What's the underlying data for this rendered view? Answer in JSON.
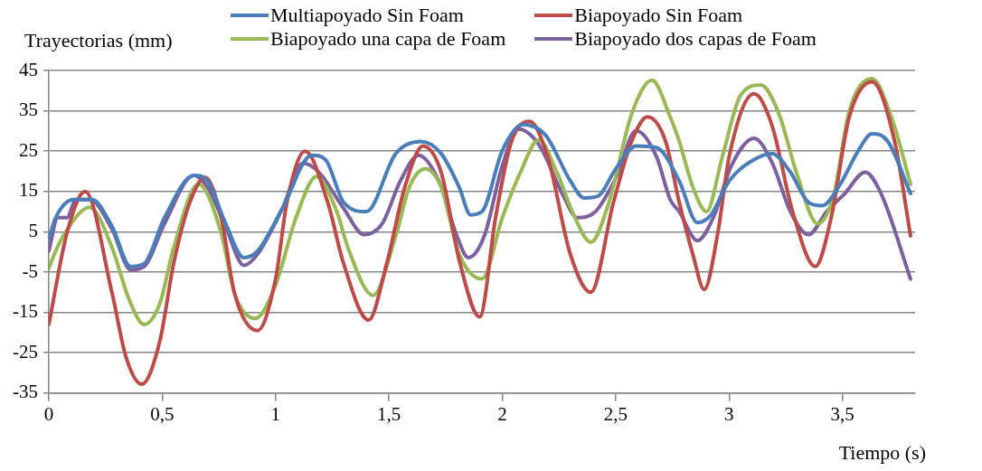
{
  "chart_data": {
    "type": "line",
    "ylabel": "Trayectorias (mm)",
    "xlabel": "Tiempo (s)",
    "xlim": [
      0,
      3.82
    ],
    "xticks": [
      0,
      {
        "value": 0.5,
        "label": "0,5"
      },
      1,
      {
        "value": 1.5,
        "label": "1,5"
      },
      2,
      {
        "value": 2.5,
        "label": "2,5"
      },
      3,
      {
        "value": 3.5,
        "label": "3,5"
      }
    ],
    "ylim": [
      -35,
      45
    ],
    "yticks": [
      -35,
      -25,
      -15,
      -5,
      5,
      15,
      25,
      35,
      45
    ],
    "grid": "y",
    "legend": "top",
    "marker": "none",
    "line_style": "solid",
    "series": [
      {
        "name": "Multiapoyado Sin Foam",
        "color": "#4a7ebb",
        "x": [
          0,
          0.03,
          0.11,
          0.19,
          0.28,
          0.36,
          0.42,
          0.51,
          0.64,
          0.7,
          0.78,
          0.86,
          0.92,
          1.03,
          1.16,
          1.22,
          1.3,
          1.4,
          1.53,
          1.64,
          1.73,
          1.81,
          1.86,
          1.91,
          2.0,
          2.09,
          2.19,
          2.3,
          2.36,
          2.42,
          2.5,
          2.59,
          2.68,
          2.78,
          2.86,
          2.92,
          3.0,
          3.11,
          3.19,
          3.27,
          3.35,
          3.41,
          3.49,
          3.57,
          3.63,
          3.7,
          3.8
        ],
        "values": [
          3.2,
          8.5,
          13,
          13,
          6.2,
          -3.6,
          -2.9,
          8.5,
          19,
          17.6,
          7,
          -1.4,
          0.2,
          10.8,
          24,
          22.9,
          12.3,
          10,
          24.4,
          27.4,
          24.4,
          16,
          9.2,
          10,
          25.2,
          31.6,
          29,
          17.6,
          13.4,
          13.8,
          20.6,
          26.3,
          25.9,
          17.6,
          7.3,
          9.2,
          17.6,
          22.9,
          24.4,
          19.8,
          12.3,
          11.5,
          16.8,
          25.2,
          29.3,
          27.4,
          14.5
        ]
      },
      {
        "name": "Biapoyado Sin Foam",
        "color": "#be4b48",
        "x": [
          0,
          0.08,
          0.16,
          0.28,
          0.34,
          0.41,
          0.49,
          0.55,
          0.62,
          0.69,
          0.76,
          0.82,
          0.92,
          1.0,
          1.05,
          1.13,
          1.23,
          1.3,
          1.41,
          1.49,
          1.57,
          1.65,
          1.73,
          1.81,
          1.9,
          1.97,
          2.04,
          2.12,
          2.2,
          2.3,
          2.39,
          2.49,
          2.57,
          2.64,
          2.72,
          2.78,
          2.84,
          2.89,
          2.95,
          3.0,
          3.11,
          3.19,
          3.28,
          3.38,
          3.45,
          3.53,
          3.63,
          3.73,
          3.8
        ],
        "values": [
          -18,
          4.7,
          15,
          -10.5,
          -26,
          -32.8,
          -22,
          -3,
          12,
          18.5,
          8.5,
          -10.5,
          -19.5,
          -6.7,
          12.3,
          25,
          12.3,
          -2.9,
          -16.9,
          -2.9,
          16.1,
          26.3,
          19.8,
          -2.1,
          -16.1,
          8.5,
          27.4,
          32.4,
          23.6,
          -0.6,
          -10,
          12.3,
          27.4,
          33.5,
          27.4,
          12.3,
          -0.6,
          -9.3,
          4.7,
          23.6,
          39.2,
          31.2,
          10,
          -3.6,
          8.5,
          33.5,
          42.2,
          27.4,
          4
        ]
      },
      {
        "name": "Biapoyado una capa de Foam",
        "color": "#98b954",
        "x": [
          0,
          0.03,
          0.08,
          0.18,
          0.28,
          0.35,
          0.42,
          0.49,
          0.55,
          0.66,
          0.76,
          0.82,
          0.91,
          1.0,
          1.09,
          1.18,
          1.27,
          1.32,
          1.43,
          1.53,
          1.59,
          1.66,
          1.73,
          1.81,
          1.91,
          2.0,
          2.08,
          2.16,
          2.24,
          2.32,
          2.39,
          2.47,
          2.57,
          2.66,
          2.74,
          2.78,
          2.84,
          2.9,
          2.97,
          3.05,
          3.14,
          3.22,
          3.3,
          3.39,
          3.46,
          3.53,
          3.63,
          3.72,
          3.8
        ],
        "values": [
          -4,
          0.2,
          5.5,
          11.1,
          0.9,
          -11.2,
          -18,
          -12.7,
          0.9,
          16.8,
          4.7,
          -10.5,
          -16.5,
          -8.2,
          8.5,
          18.7,
          10,
          0.9,
          -10.8,
          4,
          16.1,
          20.6,
          16.1,
          -0.6,
          -6.7,
          8.5,
          19.8,
          27.8,
          19.8,
          8.5,
          2.4,
          12.3,
          34.2,
          42.6,
          33.5,
          27.4,
          16.1,
          10,
          23.6,
          38.8,
          41.4,
          34.2,
          19.1,
          7,
          13.8,
          35,
          43,
          32.7,
          16.8
        ]
      },
      {
        "name": "Biapoyado dos capas de Foam",
        "color": "#7d60a0",
        "x": [
          0,
          0.04,
          0.08,
          0.12,
          0.18,
          0.28,
          0.36,
          0.42,
          0.51,
          0.64,
          0.7,
          0.78,
          0.86,
          0.92,
          1.03,
          1.12,
          1.19,
          1.3,
          1.39,
          1.47,
          1.55,
          1.63,
          1.72,
          1.8,
          1.85,
          1.92,
          2.0,
          2.07,
          2.16,
          2.27,
          2.33,
          2.41,
          2.5,
          2.59,
          2.68,
          2.74,
          2.78,
          2.86,
          2.93,
          3.01,
          3.11,
          3.19,
          3.27,
          3.35,
          3.43,
          3.51,
          3.6,
          3.67,
          3.8
        ],
        "values": [
          0.2,
          8.5,
          8.5,
          13,
          13,
          5.5,
          -4.4,
          -3.6,
          7,
          19,
          16,
          6.2,
          -3.3,
          -0.6,
          10.8,
          22,
          19.8,
          10.8,
          4.3,
          7,
          17.6,
          24,
          17.6,
          3.9,
          -1.4,
          3.9,
          21.4,
          30.5,
          26.7,
          13.8,
          8.5,
          10,
          18.3,
          30.1,
          23.6,
          13,
          10,
          2.8,
          8.5,
          21.4,
          28.2,
          22.1,
          10,
          4.3,
          10,
          14.5,
          19.8,
          14.5,
          -6.7
        ]
      }
    ]
  }
}
